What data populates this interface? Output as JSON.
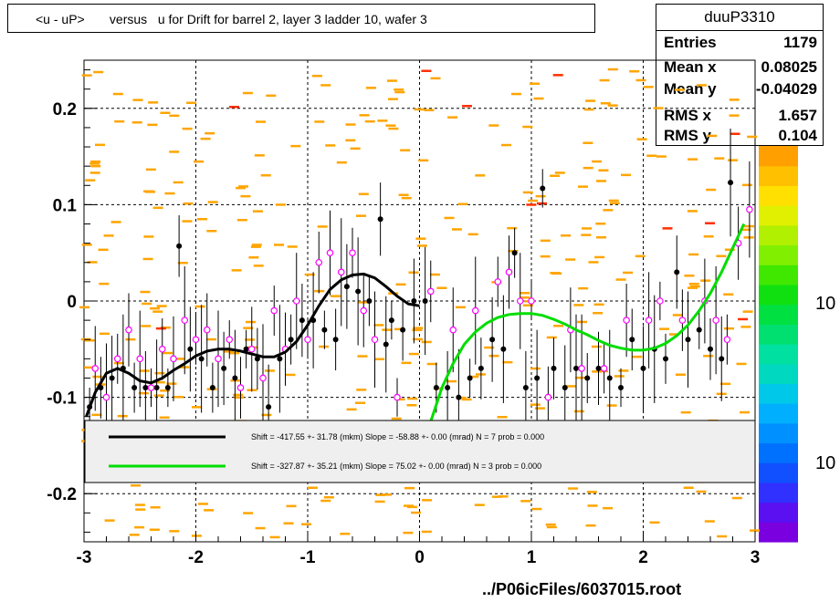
{
  "title": "<u - uP>       versus   u for Drift for barrel 2, layer 3 ladder 10, wafer 3",
  "stats": {
    "name": "duuP3310",
    "rows": [
      {
        "label": "Entries",
        "value": "1179"
      },
      {
        "label": "Mean x",
        "value": "0.08025"
      },
      {
        "label": "Mean y",
        "value": "-0.04029"
      },
      {
        "label": "RMS x",
        "value": "1.657"
      },
      {
        "label": "RMS y",
        "value": "0.104"
      }
    ]
  },
  "footer": "../P06icFiles/6037015.root",
  "legend": [
    {
      "text": "Shift =  -417.55 +- 31.78 (mkm) Slope =   -58.88 +- 0.00 (mrad)  N = 7 prob = 0.000",
      "color": "#000000"
    },
    {
      "text": "Shift =  -327.87 +- 35.21 (mkm) Slope =    75.02 +- 0.00 (mrad)  N = 3 prob = 0.000",
      "color": "#00dd00"
    }
  ],
  "palette_labels": [
    "10",
    "10"
  ],
  "chart_data": {
    "type": "scatter",
    "xlim": [
      -3,
      3
    ],
    "ylim": [
      -0.25,
      0.25
    ],
    "x_ticks": [
      -3,
      -2,
      -1,
      0,
      1,
      2,
      3
    ],
    "y_ticks": [
      -0.2,
      -0.1,
      0,
      0.1,
      0.2
    ],
    "x_tick_labels": [
      "-3",
      "-2",
      "-1",
      "0",
      "1",
      "2",
      "3"
    ],
    "y_tick_labels": [
      "-0.2",
      "-0.1",
      "0",
      "0.1",
      "0.2"
    ],
    "grid": true,
    "colors": {
      "hist_cells": "#ffa500",
      "profile_black": "#000000",
      "profile_magenta": "#ff00ff",
      "fit_black": "#000000",
      "fit_green": "#00dd00"
    },
    "series": [
      {
        "kind": "profile",
        "color": "#000000",
        "points": [
          [
            -2.95,
            -0.11
          ],
          [
            -2.85,
            -0.09
          ],
          [
            -2.75,
            -0.08
          ],
          [
            -2.65,
            -0.07
          ],
          [
            -2.55,
            -0.09
          ],
          [
            -2.45,
            -0.09
          ],
          [
            -2.35,
            -0.09
          ],
          [
            -2.25,
            -0.09
          ],
          [
            -2.15,
            0.057
          ],
          [
            -2.05,
            -0.05
          ],
          [
            -1.95,
            -0.06
          ],
          [
            -1.85,
            -0.09
          ],
          [
            -1.75,
            -0.07
          ],
          [
            -1.65,
            -0.08
          ],
          [
            -1.55,
            -0.05
          ],
          [
            -1.45,
            -0.06
          ],
          [
            -1.35,
            -0.11
          ],
          [
            -1.25,
            -0.06
          ],
          [
            -1.15,
            -0.04
          ],
          [
            -1.05,
            -0.02
          ],
          [
            -0.95,
            -0.02
          ],
          [
            -0.85,
            -0.03
          ],
          [
            -0.75,
            -0.04
          ],
          [
            -0.65,
            0.015
          ],
          [
            -0.55,
            0.01
          ],
          [
            -0.45,
            0.0
          ],
          [
            -0.35,
            0.085
          ],
          [
            -0.3,
            -0.045
          ],
          [
            -0.25,
            -0.02
          ],
          [
            -0.15,
            -0.03
          ],
          [
            -0.05,
            0.0
          ],
          [
            0.05,
            0.0
          ],
          [
            0.15,
            -0.09
          ],
          [
            0.25,
            -0.09
          ],
          [
            0.35,
            -0.1
          ],
          [
            0.45,
            -0.08
          ],
          [
            0.55,
            -0.07
          ],
          [
            0.65,
            -0.04
          ],
          [
            0.75,
            -0.05
          ],
          [
            0.85,
            0.05
          ],
          [
            0.95,
            -0.09
          ],
          [
            1.05,
            -0.08
          ],
          [
            1.1,
            0.117
          ],
          [
            1.2,
            -0.07
          ],
          [
            1.3,
            -0.09
          ],
          [
            1.4,
            -0.07
          ],
          [
            1.5,
            -0.08
          ],
          [
            1.6,
            -0.07
          ],
          [
            1.7,
            -0.08
          ],
          [
            1.8,
            -0.09
          ],
          [
            1.9,
            -0.04
          ],
          [
            2.0,
            -0.07
          ],
          [
            2.1,
            -0.05
          ],
          [
            2.2,
            -0.06
          ],
          [
            2.3,
            0.03
          ],
          [
            2.4,
            -0.04
          ],
          [
            2.5,
            -0.03
          ],
          [
            2.6,
            -0.05
          ],
          [
            2.7,
            -0.06
          ],
          [
            2.78,
            0.123
          ]
        ]
      },
      {
        "kind": "profile",
        "color": "#ff00ff",
        "points": [
          [
            -2.9,
            -0.07
          ],
          [
            -2.8,
            -0.1
          ],
          [
            -2.7,
            -0.06
          ],
          [
            -2.6,
            -0.03
          ],
          [
            -2.5,
            -0.06
          ],
          [
            -2.4,
            -0.09
          ],
          [
            -2.3,
            -0.05
          ],
          [
            -2.2,
            -0.06
          ],
          [
            -2.1,
            -0.02
          ],
          [
            -2.0,
            -0.04
          ],
          [
            -1.9,
            -0.03
          ],
          [
            -1.8,
            -0.06
          ],
          [
            -1.7,
            -0.04
          ],
          [
            -1.6,
            -0.09
          ],
          [
            -1.5,
            -0.05
          ],
          [
            -1.4,
            -0.08
          ],
          [
            -1.3,
            -0.01
          ],
          [
            -1.2,
            -0.05
          ],
          [
            -1.1,
            0.0
          ],
          [
            -1.0,
            -0.04
          ],
          [
            -0.9,
            0.04
          ],
          [
            -0.8,
            0.05
          ],
          [
            -0.7,
            0.03
          ],
          [
            -0.6,
            0.05
          ],
          [
            -0.5,
            -0.01
          ],
          [
            -0.4,
            -0.04
          ],
          [
            -0.2,
            -0.1
          ],
          [
            0.1,
            0.01
          ],
          [
            0.3,
            -0.03
          ],
          [
            0.5,
            -0.01
          ],
          [
            0.7,
            0.02
          ],
          [
            0.8,
            0.03
          ],
          [
            0.9,
            0.0
          ],
          [
            1.0,
            0.0
          ],
          [
            1.15,
            -0.1
          ],
          [
            1.35,
            -0.03
          ],
          [
            1.45,
            -0.07
          ],
          [
            1.65,
            -0.07
          ],
          [
            1.85,
            -0.02
          ],
          [
            2.05,
            -0.02
          ],
          [
            2.15,
            0.0
          ],
          [
            2.35,
            -0.02
          ],
          [
            2.55,
            0.0
          ],
          [
            2.65,
            -0.02
          ],
          [
            2.75,
            -0.04
          ],
          [
            2.85,
            0.06
          ],
          [
            2.95,
            0.095
          ]
        ]
      }
    ],
    "fits": [
      {
        "name": "fit-black",
        "color": "#000000",
        "x_range": [
          -2.98,
          0.0
        ],
        "points": [
          [
            -2.98,
            -0.12
          ],
          [
            -2.9,
            -0.095
          ],
          [
            -2.8,
            -0.075
          ],
          [
            -2.7,
            -0.07
          ],
          [
            -2.6,
            -0.075
          ],
          [
            -2.5,
            -0.083
          ],
          [
            -2.4,
            -0.085
          ],
          [
            -2.3,
            -0.08
          ],
          [
            -2.2,
            -0.072
          ],
          [
            -2.1,
            -0.065
          ],
          [
            -2.0,
            -0.057
          ],
          [
            -1.9,
            -0.052
          ],
          [
            -1.8,
            -0.05
          ],
          [
            -1.7,
            -0.05
          ],
          [
            -1.6,
            -0.052
          ],
          [
            -1.5,
            -0.055
          ],
          [
            -1.4,
            -0.058
          ],
          [
            -1.3,
            -0.058
          ],
          [
            -1.2,
            -0.053
          ],
          [
            -1.1,
            -0.042
          ],
          [
            -1.0,
            -0.025
          ],
          [
            -0.9,
            -0.005
          ],
          [
            -0.8,
            0.012
          ],
          [
            -0.7,
            0.022
          ],
          [
            -0.6,
            0.027
          ],
          [
            -0.5,
            0.028
          ],
          [
            -0.4,
            0.024
          ],
          [
            -0.3,
            0.015
          ],
          [
            -0.2,
            0.005
          ],
          [
            -0.1,
            -0.003
          ],
          [
            0.0,
            -0.005
          ]
        ]
      },
      {
        "name": "fit-green",
        "color": "#00dd00",
        "x_range": [
          0.1,
          2.95
        ],
        "points": [
          [
            0.1,
            -0.125
          ],
          [
            0.2,
            -0.09
          ],
          [
            0.3,
            -0.065
          ],
          [
            0.4,
            -0.045
          ],
          [
            0.5,
            -0.032
          ],
          [
            0.6,
            -0.023
          ],
          [
            0.7,
            -0.017
          ],
          [
            0.8,
            -0.014
          ],
          [
            0.9,
            -0.013
          ],
          [
            1.0,
            -0.013
          ],
          [
            1.1,
            -0.015
          ],
          [
            1.2,
            -0.019
          ],
          [
            1.3,
            -0.024
          ],
          [
            1.4,
            -0.03
          ],
          [
            1.5,
            -0.035
          ],
          [
            1.6,
            -0.041
          ],
          [
            1.7,
            -0.046
          ],
          [
            1.8,
            -0.049
          ],
          [
            1.9,
            -0.051
          ],
          [
            2.0,
            -0.051
          ],
          [
            2.1,
            -0.049
          ],
          [
            2.2,
            -0.044
          ],
          [
            2.3,
            -0.036
          ],
          [
            2.4,
            -0.025
          ],
          [
            2.5,
            -0.01
          ],
          [
            2.6,
            0.008
          ],
          [
            2.7,
            0.03
          ],
          [
            2.8,
            0.055
          ],
          [
            2.9,
            0.08
          ]
        ]
      }
    ]
  }
}
